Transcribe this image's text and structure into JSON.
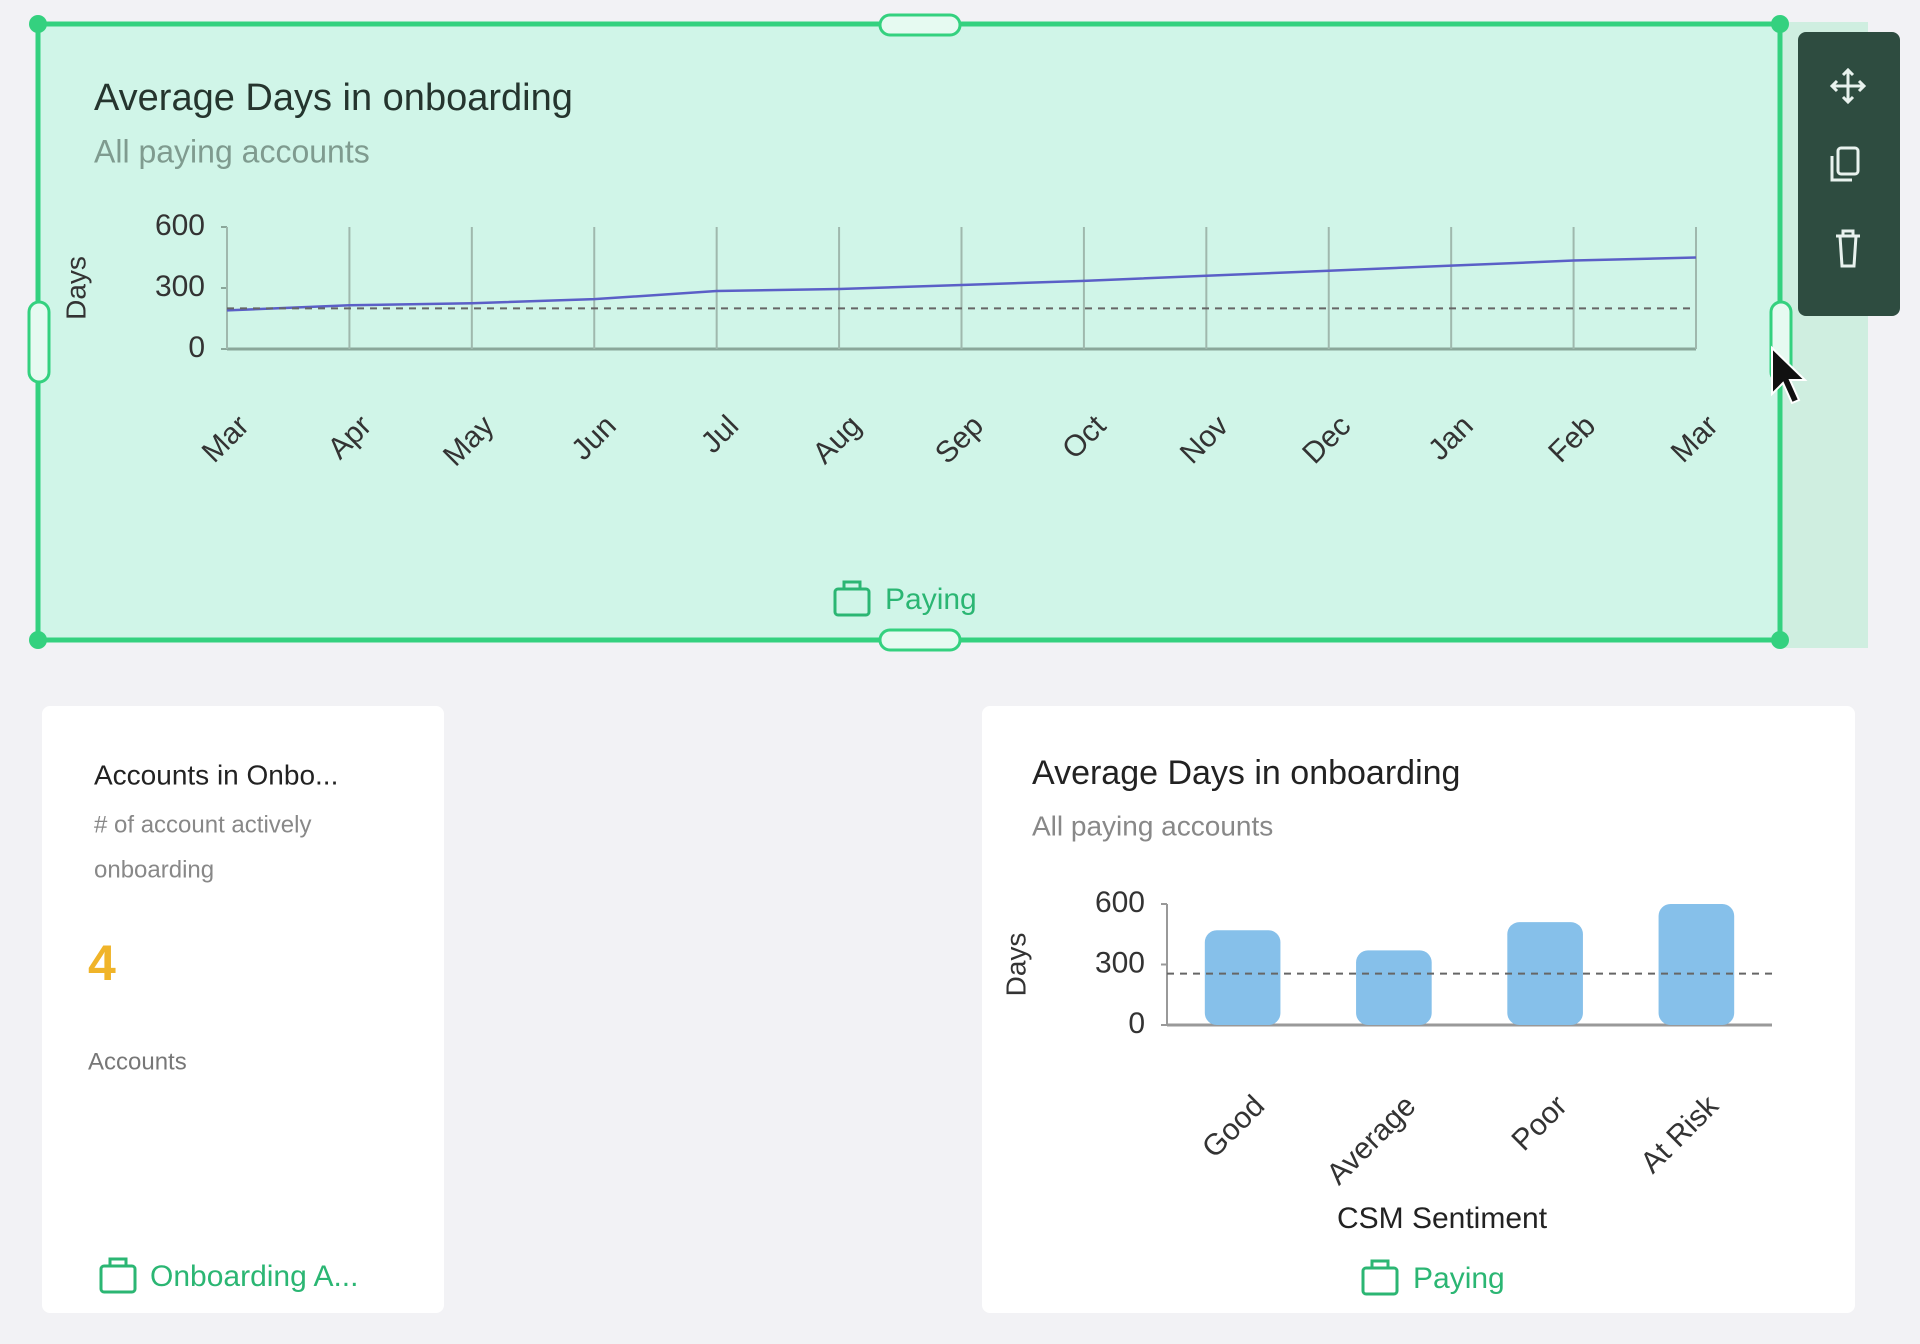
{
  "chart_data": [
    {
      "type": "line",
      "title": "Average Days in onboarding",
      "subtitle": "All paying accounts",
      "y_label": "Days",
      "footer": "Paying",
      "categories": [
        "Mar",
        "Apr",
        "May",
        "Jun",
        "Jul",
        "Aug",
        "Sep",
        "Oct",
        "Nov",
        "Dec",
        "Jan",
        "Feb",
        "Mar"
      ],
      "values": [
        190,
        215,
        225,
        245,
        285,
        295,
        315,
        335,
        360,
        385,
        410,
        435,
        450
      ],
      "color": "#5b5fc7",
      "reference_value": 200,
      "ylim": [
        0,
        600
      ],
      "yticks": [
        0,
        300,
        600
      ],
      "grid": true
    },
    {
      "type": "bar",
      "title": "Average Days in onboarding",
      "subtitle": "All paying accounts",
      "y_label": "Days",
      "x_label": "CSM Sentiment",
      "footer": "Paying",
      "categories": [
        "Good",
        "Average",
        "Poor",
        "At Risk"
      ],
      "values": [
        470,
        370,
        510,
        600
      ],
      "color": "#86c0ea",
      "reference_value": 255,
      "ylim": [
        0,
        600
      ],
      "yticks": [
        0,
        300,
        600
      ],
      "grid": false
    }
  ],
  "kpi_card": {
    "title": "Accounts in Onbo...",
    "subtitle_lines": [
      "# of account actively",
      "onboarding"
    ],
    "value": 4,
    "unit": "Accounts",
    "footer": "Onboarding A..."
  }
}
